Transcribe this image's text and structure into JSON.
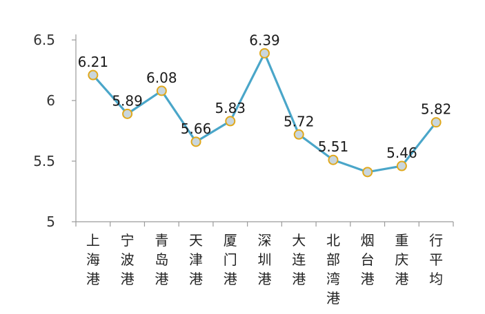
{
  "chart_data": {
    "type": "line",
    "title": "",
    "xlabel": "",
    "ylabel": "",
    "ylim": [
      5,
      6.5
    ],
    "yticks": [
      "5",
      "5.5",
      "6",
      "6.5"
    ],
    "grid": false,
    "categories": [
      [
        "上",
        "海",
        "港"
      ],
      [
        "宁",
        "波",
        "港"
      ],
      [
        "青",
        "岛",
        "港"
      ],
      [
        "天",
        "津",
        "港"
      ],
      [
        "厦",
        "门",
        "港"
      ],
      [
        "深",
        "圳",
        "港"
      ],
      [
        "大",
        "连",
        "港"
      ],
      [
        "北",
        "部",
        "湾",
        "港"
      ],
      [
        "烟",
        "台",
        "港"
      ],
      [
        "重",
        "庆",
        "港"
      ],
      [
        "行",
        "平",
        "均"
      ]
    ],
    "series": [
      {
        "values": [
          6.21,
          5.89,
          6.08,
          5.66,
          5.83,
          6.39,
          5.72,
          5.51,
          5.41,
          5.46,
          5.82
        ],
        "data_labels": [
          "6.21",
          "5.89",
          "6.08",
          "5.66",
          "5.83",
          "6.39",
          "5.72",
          "5.51",
          "",
          "5.46",
          "5.82"
        ]
      }
    ],
    "colors": {
      "line": "#4aa6c9",
      "marker_fill": "#c9d6dd",
      "marker_edge": "#e0a81c",
      "axis": "#9a9a9a"
    }
  }
}
